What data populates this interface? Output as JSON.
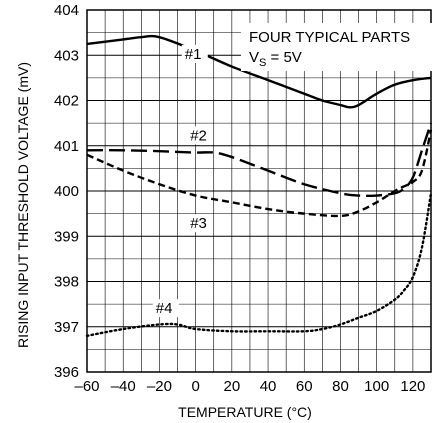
{
  "chart_data": {
    "type": "line",
    "xlabel": "TEMPERATURE (°C)",
    "ylabel": "RISING INPUT THRESHOLD VOLTAGE (mV)",
    "xlim": [
      -60,
      130
    ],
    "ylim": [
      396,
      404
    ],
    "x_ticks": [
      -60,
      -40,
      -20,
      0,
      20,
      40,
      60,
      80,
      100,
      120
    ],
    "x_tick_labels": [
      "–60",
      "–40",
      "–20",
      "0",
      "20",
      "40",
      "60",
      "80",
      "100",
      "120"
    ],
    "y_ticks": [
      396,
      397,
      398,
      399,
      400,
      401,
      402,
      403,
      404
    ],
    "y_tick_labels": [
      "396",
      "397",
      "398",
      "399",
      "400",
      "401",
      "402",
      "403",
      "404"
    ],
    "grid": true,
    "annotation": {
      "line1": "FOUR TYPICAL PARTS",
      "line2_prefix": "V",
      "line2_sub": "S",
      "line2_suffix": " = 5V"
    },
    "series": [
      {
        "label": "#1",
        "style": "solid",
        "x": [
          -60,
          -40,
          -30,
          -20,
          0,
          20,
          40,
          60,
          70,
          80,
          85,
          90,
          100,
          110,
          120,
          130
        ],
        "y": [
          403.25,
          403.35,
          403.4,
          403.4,
          403.1,
          402.75,
          402.45,
          402.15,
          402.0,
          401.9,
          401.85,
          401.9,
          402.15,
          402.35,
          402.45,
          402.5
        ]
      },
      {
        "label": "#2",
        "style": "long-dash",
        "x": [
          -60,
          -40,
          -20,
          0,
          10,
          20,
          40,
          60,
          80,
          90,
          100,
          110,
          115,
          120,
          125,
          130
        ],
        "y": [
          400.9,
          400.9,
          400.88,
          400.85,
          400.85,
          400.75,
          400.45,
          400.15,
          399.95,
          399.9,
          399.9,
          399.95,
          400.05,
          400.3,
          400.9,
          401.5
        ]
      },
      {
        "label": "#3",
        "style": "short-dash",
        "x": [
          -60,
          -40,
          -20,
          0,
          20,
          40,
          60,
          80,
          90,
          100,
          110,
          115,
          120,
          125,
          130
        ],
        "y": [
          400.8,
          400.45,
          400.15,
          399.9,
          399.75,
          399.6,
          399.5,
          399.45,
          399.55,
          399.75,
          400.0,
          400.1,
          400.2,
          400.45,
          401.35
        ]
      },
      {
        "label": "#4",
        "style": "dotted",
        "x": [
          -60,
          -40,
          -20,
          -10,
          0,
          20,
          40,
          60,
          70,
          80,
          90,
          100,
          110,
          115,
          120,
          125,
          130
        ],
        "y": [
          396.8,
          396.95,
          397.05,
          397.05,
          396.95,
          396.9,
          396.9,
          396.9,
          396.95,
          397.05,
          397.2,
          397.35,
          397.6,
          397.8,
          398.1,
          398.75,
          399.95
        ]
      }
    ]
  }
}
